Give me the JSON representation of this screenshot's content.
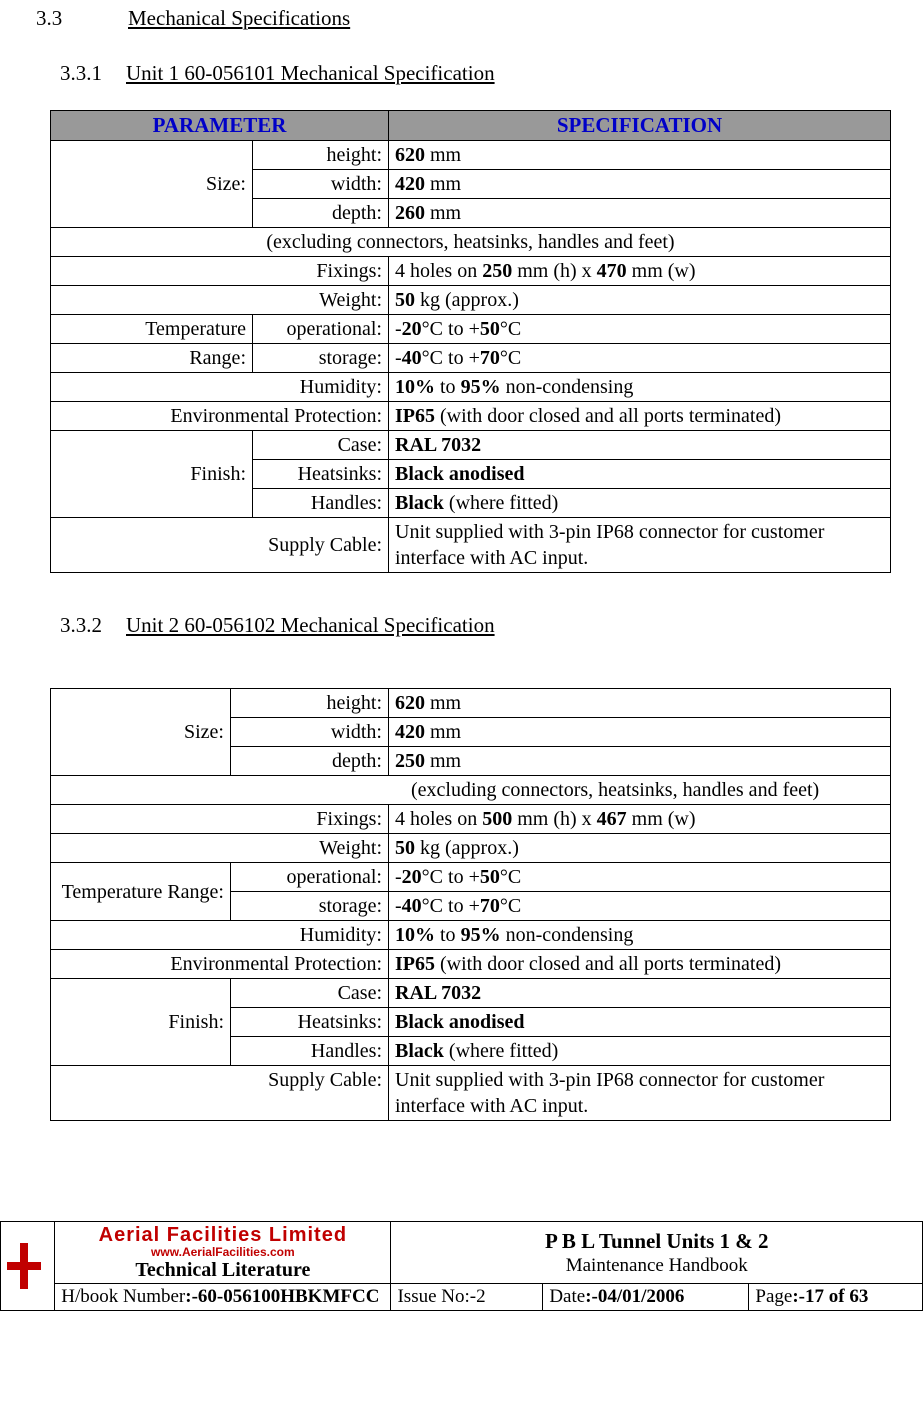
{
  "section": {
    "num": "3.3",
    "title": "Mechanical Specifications"
  },
  "sub1": {
    "num": "3.3.1",
    "title": "Unit 1 60-056101 Mechanical Specification"
  },
  "sub2": {
    "num": "3.3.2",
    "title": "Unit 2 60-056102 Mechanical Specification"
  },
  "headers": {
    "param": "PARAMETER",
    "spec": "SPECIFICATION"
  },
  "labels": {
    "size": "Size:",
    "height": "height:",
    "width": "width:",
    "depth": "depth:",
    "fixings": "Fixings:",
    "weight": "Weight:",
    "temp": "Temperature Range:",
    "temp_l1": "Temperature",
    "temp_l2": "Range:",
    "operational": "operational:",
    "storage": "storage:",
    "humidity": "Humidity:",
    "envprot": "Environmental Protection:",
    "finish": "Finish:",
    "case": "Case:",
    "heatsinks": "Heatsinks:",
    "handles": "Handles:",
    "supply": "Supply Cable:"
  },
  "unit1": {
    "height": "<b>620</b> mm",
    "width": "<b>420</b> mm",
    "depth": "<b>260</b> mm",
    "excl": "(excluding connectors, heatsinks, handles and feet)",
    "fixings": "4 holes on <b>250</b> mm (h) x <b>470</b> mm (w)",
    "weight": "<b>50</b> kg (approx.)",
    "temp_op": "-<b>20</b>°C to +<b>50</b>°C",
    "temp_st": "-<b>40</b>°C to +<b>70</b>°C",
    "humidity": "<b>10%</b> to <b>95%</b> non-condensing",
    "envprot": "<b>IP65</b> (with door closed and all ports terminated)",
    "case": "<b>RAL 7032</b>",
    "heatsinks": "<b>Black anodised</b>",
    "handles": "<b>Black</b> (where fitted)",
    "supply": "Unit supplied with 3-pin IP68 connector for customer interface with AC input."
  },
  "unit2": {
    "height": "<b>620</b> mm",
    "width": "<b>420</b> mm",
    "depth": "<b>250</b> mm",
    "excl": "(excluding connectors, heatsinks, handles and feet)",
    "fixings": "4 holes on <b>500</b> mm (h) x <b>467</b> mm (w)",
    "weight": "<b>50</b> kg (approx.)",
    "temp_op": "-<b>20</b>°C to +<b>50</b>°C",
    "temp_st": "-<b>40</b>°C to +<b>70</b>°C",
    "humidity": "<b>10%</b> to <b>95%</b> non-condensing",
    "envprot": "<b>IP65</b> (with door closed and all ports terminated)",
    "case": "<b>RAL 7032</b>",
    "heatsinks": "<b>Black anodised</b>",
    "handles": "<b>Black</b> (where fitted)",
    "supply": "Unit supplied with 3-pin IP68 connector for customer interface with AC input."
  },
  "footer": {
    "brand_line1": "Aerial  Facilities  Limited",
    "brand_url": "www.AerialFacilities.com",
    "brand_line2": "Technical Literature",
    "doc_title1": "P B L Tunnel  Units 1 & 2",
    "doc_title2": "Maintenance Handbook",
    "hbook_label": "H/book Number",
    "hbook_val": ":-60-056100HBKMFCC",
    "issue_label": "Issue No:-",
    "issue_val": "2",
    "date_label": "Date",
    "date_val": ":-04/01/2006",
    "page_label": "Page",
    "page_val": ":-17 of 63"
  },
  "colors": {
    "header_bg": "#999999",
    "header_fg": "#0000c8",
    "brand_red": "#c00000"
  }
}
